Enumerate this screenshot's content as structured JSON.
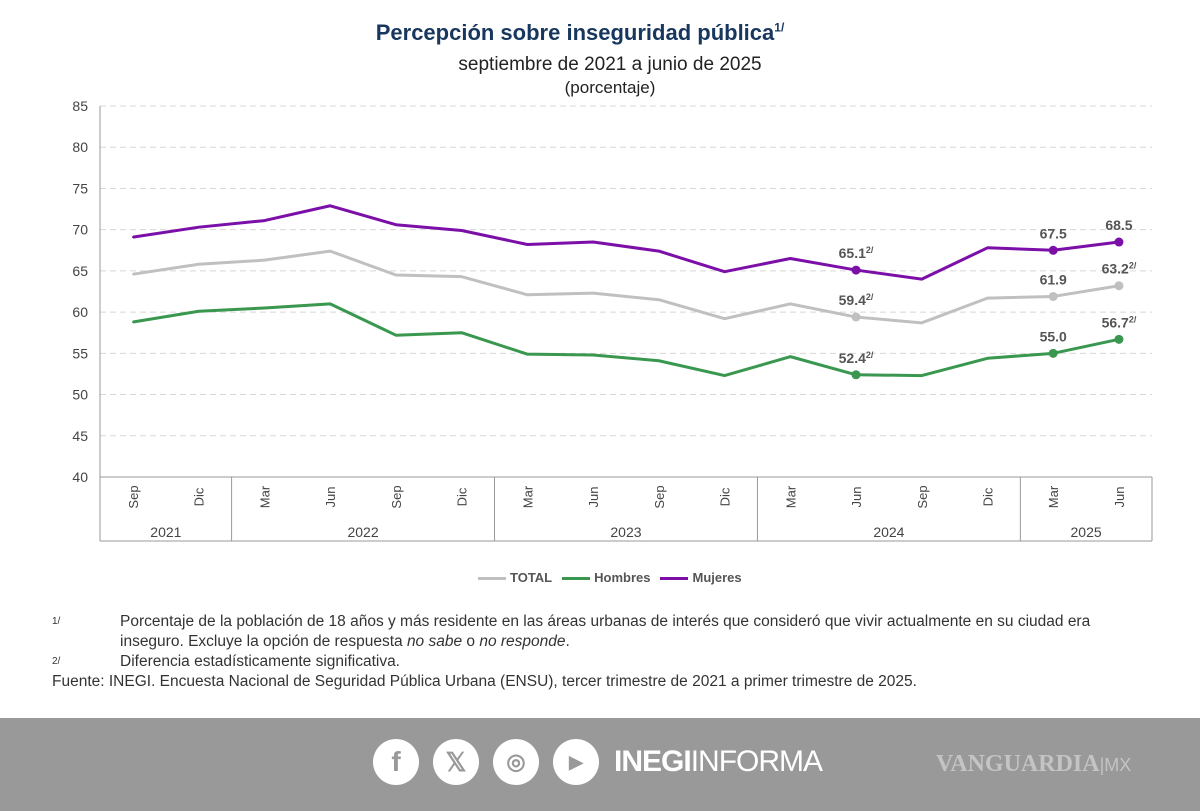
{
  "chart_data": {
    "type": "line",
    "title": "Percepción sobre inseguridad pública",
    "title_note": "1/",
    "subtitle": "septiembre de 2021 a junio de 2025",
    "unit_label": "(porcentaje)",
    "ylim": [
      40,
      85
    ],
    "yticks": [
      "40",
      "45",
      "50",
      "55",
      "60",
      "65",
      "70",
      "75",
      "80",
      "85"
    ],
    "grid": true,
    "categories": [
      "Sep",
      "Dic",
      "Mar",
      "Jun",
      "Sep",
      "Dic",
      "Mar",
      "Jun",
      "Sep",
      "Dic",
      "Mar",
      "Jun",
      "Sep",
      "Dic",
      "Mar",
      "Jun"
    ],
    "years": [
      {
        "label": "2021",
        "span": 2
      },
      {
        "label": "2022",
        "span": 4
      },
      {
        "label": "2023",
        "span": 4
      },
      {
        "label": "2024",
        "span": 4
      },
      {
        "label": "2025",
        "span": 2
      }
    ],
    "legend_position": "bottom",
    "series": [
      {
        "name": "TOTAL",
        "color": "#c0c0c0",
        "values": [
          64.6,
          65.8,
          66.3,
          67.4,
          64.5,
          64.3,
          62.1,
          62.3,
          61.5,
          59.2,
          61.0,
          59.4,
          58.7,
          61.7,
          61.9,
          63.2
        ],
        "labels": [
          {
            "index": 11,
            "text": "59.4",
            "note": "2/"
          },
          {
            "index": 14,
            "text": "61.9",
            "note": ""
          },
          {
            "index": 15,
            "text": "63.2",
            "note": "2/"
          }
        ]
      },
      {
        "name": "Hombres",
        "color": "#3a974f",
        "values": [
          58.8,
          60.1,
          60.5,
          61.0,
          57.2,
          57.5,
          54.9,
          54.8,
          54.1,
          52.3,
          54.6,
          52.4,
          52.3,
          54.4,
          55.0,
          56.7
        ],
        "labels": [
          {
            "index": 11,
            "text": "52.4",
            "note": "2/"
          },
          {
            "index": 14,
            "text": "55.0",
            "note": ""
          },
          {
            "index": 15,
            "text": "56.7",
            "note": "2/"
          }
        ]
      },
      {
        "name": "Mujeres",
        "color": "#7b0fa8",
        "values": [
          69.1,
          70.3,
          71.1,
          72.9,
          70.6,
          69.9,
          68.2,
          68.5,
          67.4,
          64.9,
          66.5,
          65.1,
          64.0,
          67.8,
          67.5,
          68.5
        ],
        "labels": [
          {
            "index": 11,
            "text": "65.1",
            "note": "2/"
          },
          {
            "index": 14,
            "text": "67.5",
            "note": ""
          },
          {
            "index": 15,
            "text": "68.5",
            "note": ""
          }
        ]
      }
    ]
  },
  "notes": [
    {
      "mark": "1/",
      "text_a": "Porcentaje de la población de 18 años y más residente en las áreas urbanas de interés que consideró que vivir actualmente en su ciudad era inseguro. Excluye la opción de respuesta ",
      "em1": "no sabe",
      "text_b": " o ",
      "em2": "no responde",
      "text_c": "."
    },
    {
      "mark": "2/",
      "text": "Diferencia estadísticamente significativa."
    }
  ],
  "source": "Fuente: INEGI. Encuesta Nacional de Seguridad Pública Urbana (ENSU), tercer trimestre de 2021 a primer trimestre de 2025.",
  "footer": {
    "icons": [
      "facebook-icon",
      "x-icon",
      "instagram-icon",
      "youtube-icon"
    ],
    "brand_bold": "INEGI",
    "brand_light": "INFORMA",
    "watermark": "VANGUARDIA",
    "watermark_suffix": "MX",
    "background": "#999999"
  }
}
